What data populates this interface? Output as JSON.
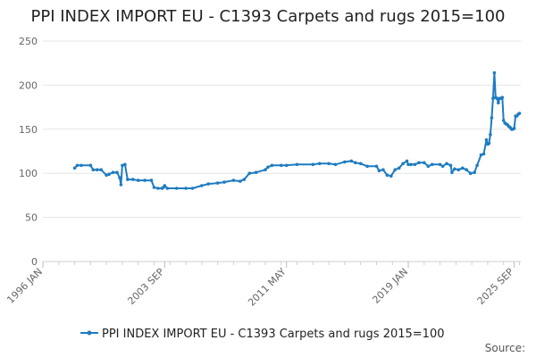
{
  "chart_data": {
    "type": "line",
    "title": "PPI INDEX IMPORT EU - C1393 Carpets and rugs 2015=100",
    "series": [
      {
        "name": "PPI INDEX IMPORT EU - C1393 Carpets and rugs 2015=100",
        "color": "#1f7cc1",
        "points": [
          [
            "1998-01",
            106
          ],
          [
            "1998-03",
            109
          ],
          [
            "1998-06",
            109
          ],
          [
            "1999-01",
            109
          ],
          [
            "1999-03",
            104
          ],
          [
            "1999-06",
            104
          ],
          [
            "1999-09",
            104
          ],
          [
            "2000-01",
            98
          ],
          [
            "2000-03",
            99
          ],
          [
            "2000-06",
            101
          ],
          [
            "2000-09",
            101
          ],
          [
            "2000-11",
            95
          ],
          [
            "2000-12",
            87
          ],
          [
            "2001-01",
            109
          ],
          [
            "2001-03",
            110
          ],
          [
            "2001-05",
            93
          ],
          [
            "2001-09",
            93
          ],
          [
            "2002-01",
            92
          ],
          [
            "2002-06",
            92
          ],
          [
            "2002-11",
            92
          ],
          [
            "2003-01",
            84
          ],
          [
            "2003-04",
            83
          ],
          [
            "2003-07",
            83
          ],
          [
            "2003-08",
            84
          ],
          [
            "2003-09",
            86
          ],
          [
            "2003-11",
            83
          ],
          [
            "2004-06",
            83
          ],
          [
            "2005-01",
            83
          ],
          [
            "2005-06",
            83
          ],
          [
            "2006-01",
            86
          ],
          [
            "2006-06",
            88
          ],
          [
            "2007-01",
            89
          ],
          [
            "2007-06",
            90
          ],
          [
            "2008-01",
            92
          ],
          [
            "2008-06",
            91
          ],
          [
            "2008-09",
            93
          ],
          [
            "2009-01",
            100
          ],
          [
            "2009-06",
            101
          ],
          [
            "2010-01",
            104
          ],
          [
            "2010-03",
            107
          ],
          [
            "2010-06",
            109
          ],
          [
            "2011-01",
            109
          ],
          [
            "2011-05",
            109
          ],
          [
            "2012-01",
            110
          ],
          [
            "2013-01",
            110
          ],
          [
            "2013-06",
            111
          ],
          [
            "2014-01",
            111
          ],
          [
            "2014-06",
            110
          ],
          [
            "2015-01",
            113
          ],
          [
            "2015-06",
            114
          ],
          [
            "2015-09",
            112
          ],
          [
            "2016-01",
            111
          ],
          [
            "2016-06",
            108
          ],
          [
            "2017-01",
            108
          ],
          [
            "2017-03",
            103
          ],
          [
            "2017-06",
            104
          ],
          [
            "2017-09",
            98
          ],
          [
            "2017-12",
            97
          ],
          [
            "2018-03",
            104
          ],
          [
            "2018-06",
            106
          ],
          [
            "2018-09",
            111
          ],
          [
            "2018-12",
            114
          ],
          [
            "2019-01",
            110
          ],
          [
            "2019-03",
            110
          ],
          [
            "2019-06",
            110
          ],
          [
            "2019-09",
            112
          ],
          [
            "2020-01",
            112
          ],
          [
            "2020-04",
            108
          ],
          [
            "2020-07",
            110
          ],
          [
            "2021-01",
            110
          ],
          [
            "2021-03",
            108
          ],
          [
            "2021-06",
            111
          ],
          [
            "2021-09",
            109
          ],
          [
            "2021-10",
            101
          ],
          [
            "2021-12",
            105
          ],
          [
            "2022-03",
            104
          ],
          [
            "2022-06",
            106
          ],
          [
            "2022-09",
            104
          ],
          [
            "2022-12",
            100
          ],
          [
            "2023-03",
            101
          ],
          [
            "2023-05",
            109
          ],
          [
            "2023-08",
            121
          ],
          [
            "2023-10",
            122
          ],
          [
            "2023-12",
            138
          ],
          [
            "2024-01",
            133
          ],
          [
            "2024-02",
            134
          ],
          [
            "2024-03",
            144
          ],
          [
            "2024-04",
            163
          ],
          [
            "2024-05",
            185
          ],
          [
            "2024-06",
            214
          ],
          [
            "2024-07",
            186
          ],
          [
            "2024-08",
            185
          ],
          [
            "2024-09",
            180
          ],
          [
            "2024-10",
            185
          ],
          [
            "2024-11",
            185
          ],
          [
            "2024-12",
            186
          ],
          [
            "2025-01",
            160
          ],
          [
            "2025-02",
            157
          ],
          [
            "2025-03",
            156
          ],
          [
            "2025-04",
            155
          ],
          [
            "2025-05",
            153
          ],
          [
            "2025-06",
            152
          ],
          [
            "2025-07",
            150
          ],
          [
            "2025-08",
            150
          ],
          [
            "2025-09",
            151
          ],
          [
            "2025-10",
            165
          ],
          [
            "2025-11",
            165
          ],
          [
            "2025-12",
            167
          ],
          [
            "2026-01",
            168
          ]
        ]
      }
    ],
    "y_ticks": [
      0,
      50,
      100,
      150,
      200,
      250
    ],
    "ylim": [
      0,
      250
    ],
    "x_ticks": [
      {
        "label": "1996 JAN",
        "date": "1996-01"
      },
      {
        "label": "2003 SEP",
        "date": "2003-09"
      },
      {
        "label": "2011 MAY",
        "date": "2011-05"
      },
      {
        "label": "2019 JAN",
        "date": "2019-01"
      },
      {
        "label": "2025 SEP",
        "date": "2025-09"
      }
    ],
    "xlim": [
      "1996-01",
      "2026-02"
    ],
    "grid": true,
    "legend_position": "bottom"
  },
  "source_label": "Source:"
}
